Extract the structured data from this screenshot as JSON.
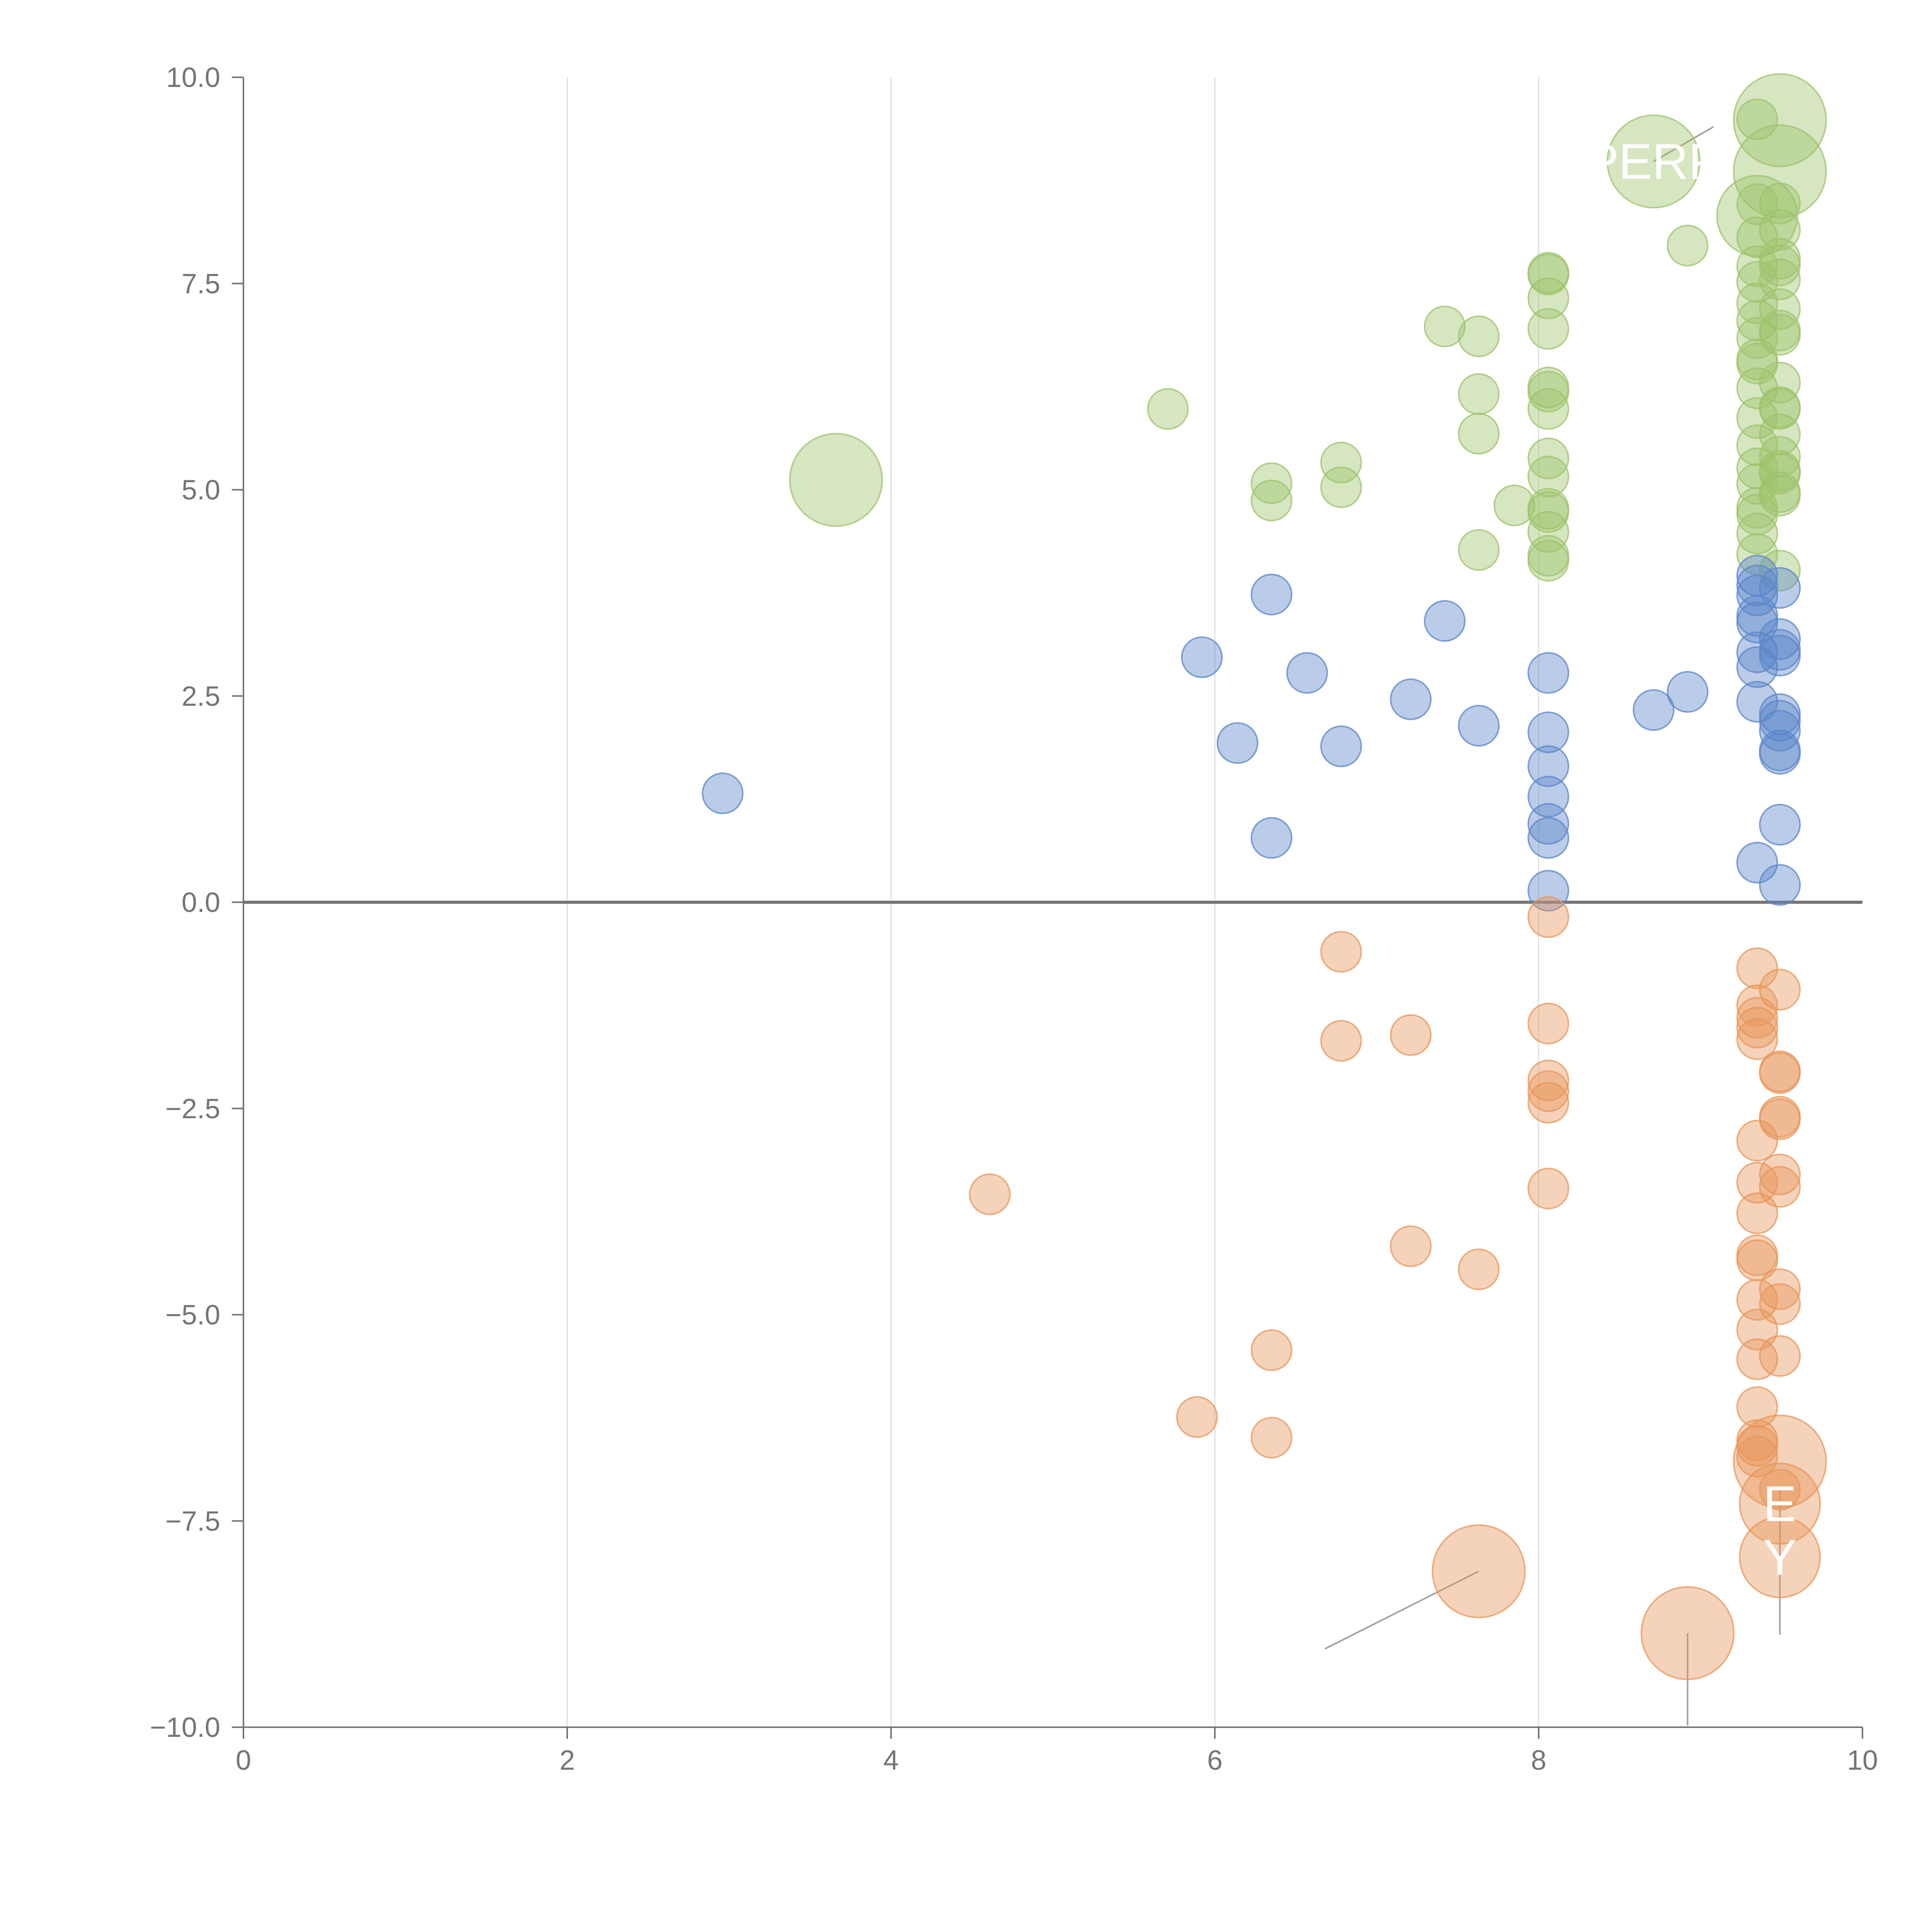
{
  "chart_data": {
    "type": "scatter",
    "title": "",
    "xlabel": "",
    "ylabel": "",
    "xlim": [
      0,
      10
    ],
    "ylim": [
      -10,
      10
    ],
    "x_ticks": [
      "0",
      "2",
      "4",
      "6",
      "8",
      "10"
    ],
    "y_ticks": [
      "−10.0",
      "−7.5",
      "−5.0",
      "−2.5",
      "0.0",
      "2.5",
      "5.0",
      "7.5",
      "10.0"
    ],
    "grid": "vertical",
    "zero_line": true,
    "legend": "none",
    "colors": {
      "green": "#9dc36b",
      "blue": "#5b86c9",
      "orange": "#e8955a",
      "axis": "#757575",
      "grid": "#dedede",
      "leader": "#9e9e9e"
    },
    "series": [
      {
        "name": "green",
        "points": [
          {
            "x": 3.66,
            "y": 5.12,
            "s": 2.3
          },
          {
            "x": 5.71,
            "y": 5.98,
            "s": 1
          },
          {
            "x": 6.35,
            "y": 5.08,
            "s": 1
          },
          {
            "x": 6.35,
            "y": 4.87,
            "s": 1
          },
          {
            "x": 6.78,
            "y": 5.33,
            "s": 1
          },
          {
            "x": 6.78,
            "y": 5.03,
            "s": 1
          },
          {
            "x": 7.42,
            "y": 6.98,
            "s": 1
          },
          {
            "x": 7.63,
            "y": 6.86,
            "s": 1
          },
          {
            "x": 7.63,
            "y": 6.16,
            "s": 1
          },
          {
            "x": 7.63,
            "y": 5.68,
            "s": 1
          },
          {
            "x": 7.63,
            "y": 4.27,
            "s": 1
          },
          {
            "x": 7.85,
            "y": 4.81,
            "s": 1
          },
          {
            "x": 8.06,
            "y": 7.63,
            "s": 1
          },
          {
            "x": 8.06,
            "y": 7.61,
            "s": 1
          },
          {
            "x": 8.06,
            "y": 7.32,
            "s": 1
          },
          {
            "x": 8.06,
            "y": 6.95,
            "s": 1
          },
          {
            "x": 8.06,
            "y": 6.24,
            "s": 1
          },
          {
            "x": 8.06,
            "y": 6.19,
            "s": 1
          },
          {
            "x": 8.06,
            "y": 5.98,
            "s": 1
          },
          {
            "x": 8.06,
            "y": 5.38,
            "s": 1
          },
          {
            "x": 8.06,
            "y": 5.16,
            "s": 1
          },
          {
            "x": 8.06,
            "y": 4.77,
            "s": 1
          },
          {
            "x": 8.06,
            "y": 4.73,
            "s": 1
          },
          {
            "x": 8.06,
            "y": 4.49,
            "s": 1
          },
          {
            "x": 8.06,
            "y": 4.2,
            "s": 1
          },
          {
            "x": 8.06,
            "y": 4.14,
            "s": 1
          },
          {
            "x": 8.71,
            "y": 8.98,
            "s": 2.3
          },
          {
            "x": 8.92,
            "y": 7.96,
            "s": 1
          },
          {
            "x": 9.35,
            "y": 9.49,
            "s": 1
          },
          {
            "x": 9.35,
            "y": 8.32,
            "s": 2
          },
          {
            "x": 9.35,
            "y": 8.46,
            "s": 1
          },
          {
            "x": 9.35,
            "y": 8.06,
            "s": 1
          },
          {
            "x": 9.35,
            "y": 7.71,
            "s": 1
          },
          {
            "x": 9.35,
            "y": 7.52,
            "s": 1
          },
          {
            "x": 9.35,
            "y": 7.26,
            "s": 1
          },
          {
            "x": 9.35,
            "y": 7.05,
            "s": 1
          },
          {
            "x": 9.35,
            "y": 6.84,
            "s": 1
          },
          {
            "x": 9.35,
            "y": 6.58,
            "s": 1
          },
          {
            "x": 9.35,
            "y": 6.53,
            "s": 1
          },
          {
            "x": 9.35,
            "y": 6.23,
            "s": 1
          },
          {
            "x": 9.35,
            "y": 5.87,
            "s": 1
          },
          {
            "x": 9.35,
            "y": 5.54,
            "s": 1
          },
          {
            "x": 9.35,
            "y": 5.26,
            "s": 1
          },
          {
            "x": 9.35,
            "y": 5.07,
            "s": 1
          },
          {
            "x": 9.35,
            "y": 4.78,
            "s": 1
          },
          {
            "x": 9.35,
            "y": 4.7,
            "s": 1
          },
          {
            "x": 9.35,
            "y": 4.47,
            "s": 1
          },
          {
            "x": 9.35,
            "y": 4.22,
            "s": 1
          },
          {
            "x": 9.49,
            "y": 9.48,
            "s": 2.3
          },
          {
            "x": 9.49,
            "y": 8.86,
            "s": 2.3
          },
          {
            "x": 9.49,
            "y": 8.47,
            "s": 1
          },
          {
            "x": 9.49,
            "y": 8.15,
            "s": 1
          },
          {
            "x": 9.49,
            "y": 7.8,
            "s": 1
          },
          {
            "x": 9.49,
            "y": 7.72,
            "s": 1
          },
          {
            "x": 9.49,
            "y": 7.55,
            "s": 1
          },
          {
            "x": 9.49,
            "y": 7.19,
            "s": 1
          },
          {
            "x": 9.49,
            "y": 6.93,
            "s": 1
          },
          {
            "x": 9.49,
            "y": 6.88,
            "s": 1
          },
          {
            "x": 9.49,
            "y": 6.3,
            "s": 1
          },
          {
            "x": 9.49,
            "y": 6.0,
            "s": 1
          },
          {
            "x": 9.49,
            "y": 5.98,
            "s": 1
          },
          {
            "x": 9.49,
            "y": 5.67,
            "s": 1
          },
          {
            "x": 9.49,
            "y": 5.4,
            "s": 1
          },
          {
            "x": 9.49,
            "y": 5.23,
            "s": 1
          },
          {
            "x": 9.49,
            "y": 5.2,
            "s": 1
          },
          {
            "x": 9.49,
            "y": 4.97,
            "s": 1
          },
          {
            "x": 9.49,
            "y": 4.93,
            "s": 1
          },
          {
            "x": 9.49,
            "y": 4.02,
            "s": 1
          }
        ]
      },
      {
        "name": "blue",
        "points": [
          {
            "x": 2.96,
            "y": 1.32,
            "s": 1
          },
          {
            "x": 5.92,
            "y": 2.97,
            "s": 1
          },
          {
            "x": 6.14,
            "y": 1.93,
            "s": 1
          },
          {
            "x": 6.35,
            "y": 3.73,
            "s": 1
          },
          {
            "x": 6.35,
            "y": 0.78,
            "s": 1
          },
          {
            "x": 6.57,
            "y": 2.78,
            "s": 1
          },
          {
            "x": 6.78,
            "y": 1.89,
            "s": 1
          },
          {
            "x": 7.21,
            "y": 2.46,
            "s": 1
          },
          {
            "x": 7.42,
            "y": 3.41,
            "s": 1
          },
          {
            "x": 7.63,
            "y": 2.14,
            "s": 1
          },
          {
            "x": 8.06,
            "y": 2.78,
            "s": 1
          },
          {
            "x": 8.06,
            "y": 2.06,
            "s": 1
          },
          {
            "x": 8.06,
            "y": 1.65,
            "s": 1
          },
          {
            "x": 8.06,
            "y": 1.28,
            "s": 1
          },
          {
            "x": 8.06,
            "y": 0.95,
            "s": 1
          },
          {
            "x": 8.06,
            "y": 0.78,
            "s": 1
          },
          {
            "x": 8.06,
            "y": 0.14,
            "s": 1
          },
          {
            "x": 8.71,
            "y": 2.33,
            "s": 1
          },
          {
            "x": 8.92,
            "y": 2.55,
            "s": 1
          },
          {
            "x": 9.35,
            "y": 3.96,
            "s": 1
          },
          {
            "x": 9.35,
            "y": 3.84,
            "s": 1
          },
          {
            "x": 9.35,
            "y": 3.72,
            "s": 1
          },
          {
            "x": 9.35,
            "y": 3.47,
            "s": 1
          },
          {
            "x": 9.35,
            "y": 3.39,
            "s": 1
          },
          {
            "x": 9.35,
            "y": 3.03,
            "s": 1
          },
          {
            "x": 9.35,
            "y": 2.85,
            "s": 1
          },
          {
            "x": 9.35,
            "y": 2.43,
            "s": 1
          },
          {
            "x": 9.35,
            "y": 0.48,
            "s": 1
          },
          {
            "x": 9.49,
            "y": 3.81,
            "s": 1
          },
          {
            "x": 9.49,
            "y": 3.19,
            "s": 1
          },
          {
            "x": 9.49,
            "y": 3.06,
            "s": 1
          },
          {
            "x": 9.49,
            "y": 2.99,
            "s": 1
          },
          {
            "x": 9.49,
            "y": 2.28,
            "s": 1
          },
          {
            "x": 9.49,
            "y": 2.2,
            "s": 1
          },
          {
            "x": 9.49,
            "y": 2.08,
            "s": 1
          },
          {
            "x": 9.49,
            "y": 1.84,
            "s": 1
          },
          {
            "x": 9.49,
            "y": 1.8,
            "s": 1
          },
          {
            "x": 9.49,
            "y": 0.94,
            "s": 1
          },
          {
            "x": 9.49,
            "y": 0.21,
            "s": 1
          }
        ]
      },
      {
        "name": "orange",
        "points": [
          {
            "x": 4.61,
            "y": -3.54,
            "s": 1
          },
          {
            "x": 5.89,
            "y": -6.24,
            "s": 1
          },
          {
            "x": 6.35,
            "y": -5.43,
            "s": 1
          },
          {
            "x": 6.35,
            "y": -6.49,
            "s": 1
          },
          {
            "x": 6.78,
            "y": -0.6,
            "s": 1
          },
          {
            "x": 6.78,
            "y": -1.68,
            "s": 1
          },
          {
            "x": 7.21,
            "y": -1.61,
            "s": 1
          },
          {
            "x": 7.21,
            "y": -4.17,
            "s": 1
          },
          {
            "x": 7.63,
            "y": -4.45,
            "s": 1
          },
          {
            "x": 7.63,
            "y": -8.11,
            "s": 2.3
          },
          {
            "x": 8.06,
            "y": -0.18,
            "s": 1
          },
          {
            "x": 8.06,
            "y": -1.47,
            "s": 1
          },
          {
            "x": 8.06,
            "y": -2.16,
            "s": 1
          },
          {
            "x": 8.06,
            "y": -2.29,
            "s": 1
          },
          {
            "x": 8.06,
            "y": -2.43,
            "s": 1
          },
          {
            "x": 8.06,
            "y": -3.47,
            "s": 1
          },
          {
            "x": 8.92,
            "y": -8.86,
            "s": 2.3
          },
          {
            "x": 9.35,
            "y": -0.8,
            "s": 1
          },
          {
            "x": 9.35,
            "y": -1.25,
            "s": 1
          },
          {
            "x": 9.35,
            "y": -1.4,
            "s": 1
          },
          {
            "x": 9.35,
            "y": -1.52,
            "s": 1
          },
          {
            "x": 9.35,
            "y": -1.66,
            "s": 1
          },
          {
            "x": 9.35,
            "y": -2.89,
            "s": 1
          },
          {
            "x": 9.35,
            "y": -3.4,
            "s": 1
          },
          {
            "x": 9.35,
            "y": -3.77,
            "s": 1
          },
          {
            "x": 9.35,
            "y": -4.28,
            "s": 1
          },
          {
            "x": 9.35,
            "y": -4.34,
            "s": 1
          },
          {
            "x": 9.35,
            "y": -4.82,
            "s": 1
          },
          {
            "x": 9.35,
            "y": -5.18,
            "s": 1
          },
          {
            "x": 9.35,
            "y": -5.54,
            "s": 1
          },
          {
            "x": 9.35,
            "y": -6.12,
            "s": 1
          },
          {
            "x": 9.35,
            "y": -6.52,
            "s": 1
          },
          {
            "x": 9.35,
            "y": -6.59,
            "s": 1
          },
          {
            "x": 9.35,
            "y": -6.72,
            "s": 1
          },
          {
            "x": 9.49,
            "y": -1.06,
            "s": 1
          },
          {
            "x": 9.49,
            "y": -2.05,
            "s": 1
          },
          {
            "x": 9.49,
            "y": -2.07,
            "s": 1
          },
          {
            "x": 9.49,
            "y": -2.6,
            "s": 1
          },
          {
            "x": 9.49,
            "y": -2.63,
            "s": 1
          },
          {
            "x": 9.49,
            "y": -3.3,
            "s": 1
          },
          {
            "x": 9.49,
            "y": -3.45,
            "s": 1
          },
          {
            "x": 9.49,
            "y": -4.69,
            "s": 1
          },
          {
            "x": 9.49,
            "y": -4.87,
            "s": 1
          },
          {
            "x": 9.49,
            "y": -5.5,
            "s": 1
          },
          {
            "x": 9.49,
            "y": -6.78,
            "s": 2.3
          },
          {
            "x": 9.49,
            "y": -7.12,
            "s": 1
          },
          {
            "x": 9.49,
            "y": -7.29,
            "s": 2
          },
          {
            "x": 9.49,
            "y": -7.94,
            "s": 2
          }
        ]
      }
    ],
    "annotations": [
      {
        "text": "PERP",
        "x": 8.71,
        "y": 8.98
      },
      {
        "text": "E",
        "x": 9.49,
        "y": -7.29
      },
      {
        "text": "Y",
        "x": 9.49,
        "y": -7.94
      }
    ]
  }
}
